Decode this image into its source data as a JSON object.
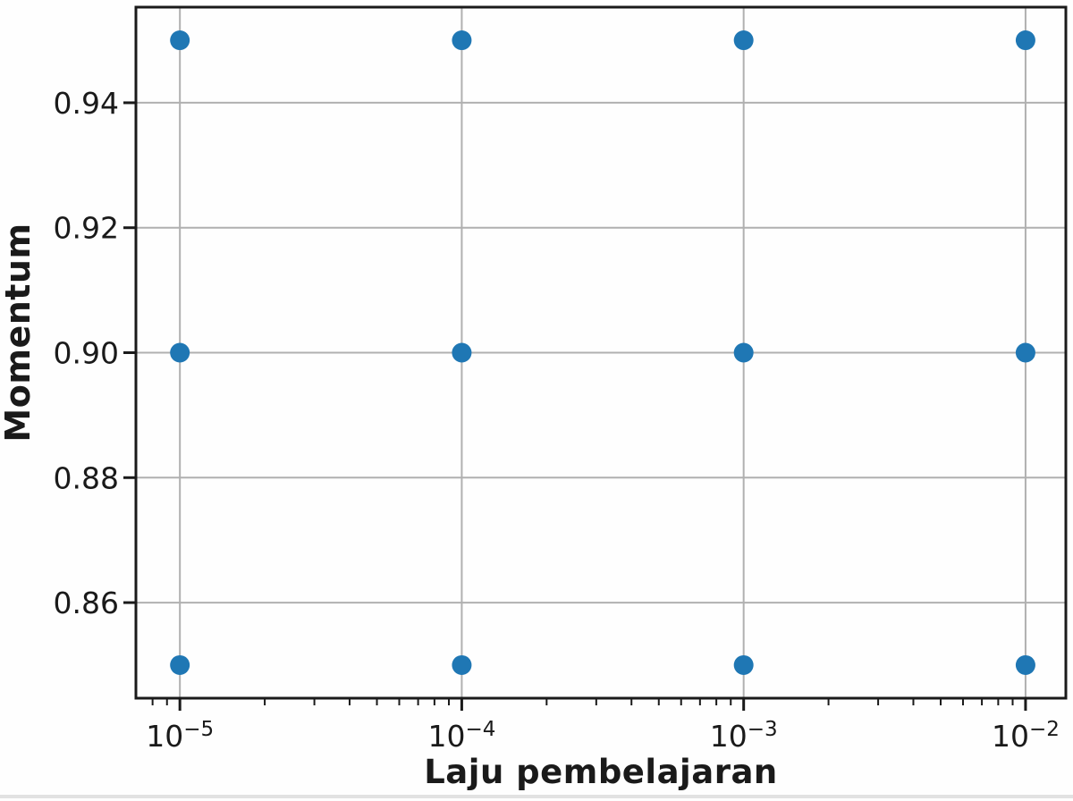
{
  "figure": {
    "background": "#fefefe",
    "bottom_edge_color": "#e2e2e2"
  },
  "chart_data": {
    "type": "scatter",
    "title": "",
    "xlabel": "Laju pembelajaran",
    "ylabel": "Momentum",
    "x_scale": "log",
    "grid": true,
    "legend": "none",
    "x_axis": {
      "lim_log10": [
        -5.156,
        -1.857
      ],
      "ticks": [
        {
          "value": 1e-05,
          "base": "10",
          "exponent": "−5"
        },
        {
          "value": 0.0001,
          "base": "10",
          "exponent": "−4"
        },
        {
          "value": 0.001,
          "base": "10",
          "exponent": "−3"
        },
        {
          "value": 0.01,
          "base": "10",
          "exponent": "−2"
        }
      ]
    },
    "y_axis": {
      "lim": [
        0.8447,
        0.9553
      ],
      "ticks": [
        {
          "value": 0.86,
          "label": "0.86"
        },
        {
          "value": 0.88,
          "label": "0.88"
        },
        {
          "value": 0.9,
          "label": "0.90"
        },
        {
          "value": 0.92,
          "label": "0.92"
        },
        {
          "value": 0.94,
          "label": "0.94"
        }
      ]
    },
    "points": [
      {
        "x": 1e-05,
        "y": 0.85
      },
      {
        "x": 1e-05,
        "y": 0.9
      },
      {
        "x": 1e-05,
        "y": 0.95
      },
      {
        "x": 0.0001,
        "y": 0.85
      },
      {
        "x": 0.0001,
        "y": 0.9
      },
      {
        "x": 0.0001,
        "y": 0.95
      },
      {
        "x": 0.001,
        "y": 0.85
      },
      {
        "x": 0.001,
        "y": 0.9
      },
      {
        "x": 0.001,
        "y": 0.95
      },
      {
        "x": 0.01,
        "y": 0.85
      },
      {
        "x": 0.01,
        "y": 0.9
      },
      {
        "x": 0.01,
        "y": 0.95
      }
    ],
    "marker": {
      "color": "#1f77b4",
      "radius_px": 11
    },
    "grid_color": "#b0b0b0",
    "axis_color": "#1a1a1a",
    "text_color": "#1a1a1a"
  }
}
